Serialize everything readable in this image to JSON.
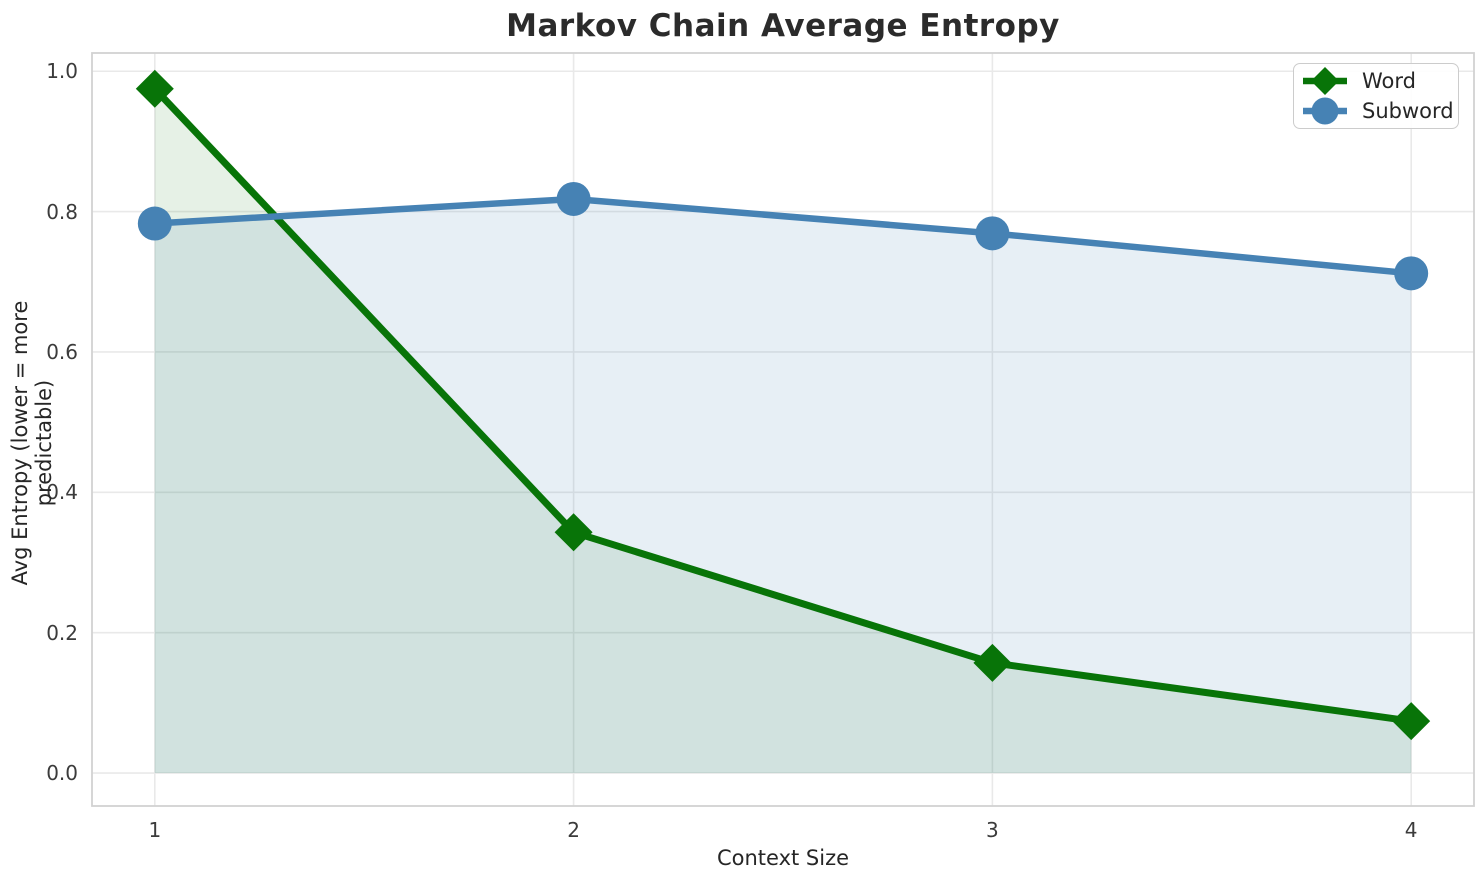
{
  "chart_data": {
    "type": "line",
    "title": "Markov Chain Average Entropy",
    "xlabel": "Context Size",
    "ylabel": "Avg Entropy (lower = more predictable)",
    "x": [
      1,
      2,
      3,
      4
    ],
    "series": [
      {
        "name": "Word",
        "values": [
          0.975,
          0.343,
          0.157,
          0.074
        ],
        "color": "#087408",
        "marker": "diamond",
        "line_width": 7,
        "marker_size": 19,
        "fill_alpha": 0.1
      },
      {
        "name": "Subword",
        "values": [
          0.783,
          0.818,
          0.769,
          0.712
        ],
        "color": "#4682b4",
        "marker": "circle",
        "line_width": 6.5,
        "marker_size": 17,
        "fill_alpha": 0.13
      }
    ],
    "xticks": [
      "1",
      "2",
      "3",
      "4"
    ],
    "xtick_values": [
      1,
      2,
      3,
      4
    ],
    "yticks": [
      "0.0",
      "0.2",
      "0.4",
      "0.6",
      "0.8",
      "1.0"
    ],
    "ytick_values": [
      0.0,
      0.2,
      0.4,
      0.6,
      0.8,
      1.0
    ],
    "xlim": [
      0.85,
      4.15
    ],
    "ylim": [
      -0.047,
      1.026
    ],
    "grid": true,
    "grid_color": "#e9e9e9",
    "spine_color": "#d2d2d2",
    "area_fill_to_zero": true,
    "legend_position": "upper right"
  }
}
